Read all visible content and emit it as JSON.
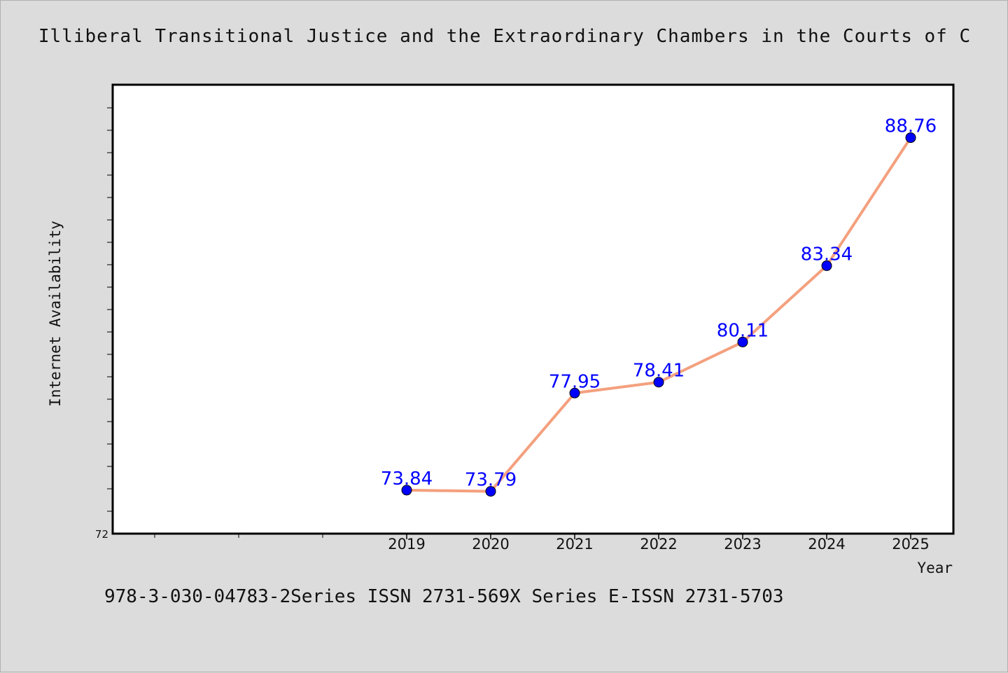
{
  "title": "Illiberal Transitional Justice and the Extraordinary Chambers in the Courts of C",
  "footer": "978-3-030-04783-2Series ISSN 2731-569X Series E-ISSN 2731-5703",
  "colors": {
    "background": "#dcdcdc",
    "plot_background": "#ffffff",
    "line": "#f4a07e",
    "marker": "#0000ff",
    "data_label": "#0000ff"
  },
  "chart_data": {
    "type": "line",
    "title": "Illiberal Transitional Justice and the Extraordinary Chambers in the Courts of C",
    "xlabel": "Year",
    "ylabel": "Internet Availability",
    "x_ticks": [
      "2019",
      "2020",
      "2021",
      "2022",
      "2023",
      "2024",
      "2025"
    ],
    "y_tick_labels": [
      "72"
    ],
    "ylim": [
      72,
      91
    ],
    "grid": false,
    "legend": "none",
    "series": [
      {
        "x": [
          "2019",
          "2020",
          "2021",
          "2022",
          "2023",
          "2024",
          "2025"
        ],
        "values": [
          73.84,
          73.79,
          77.95,
          78.41,
          80.11,
          83.34,
          88.76
        ],
        "labels": [
          "73.84",
          "73.79",
          "77.95",
          "78.41",
          "80.11",
          "83.34",
          "88.76"
        ]
      }
    ]
  }
}
